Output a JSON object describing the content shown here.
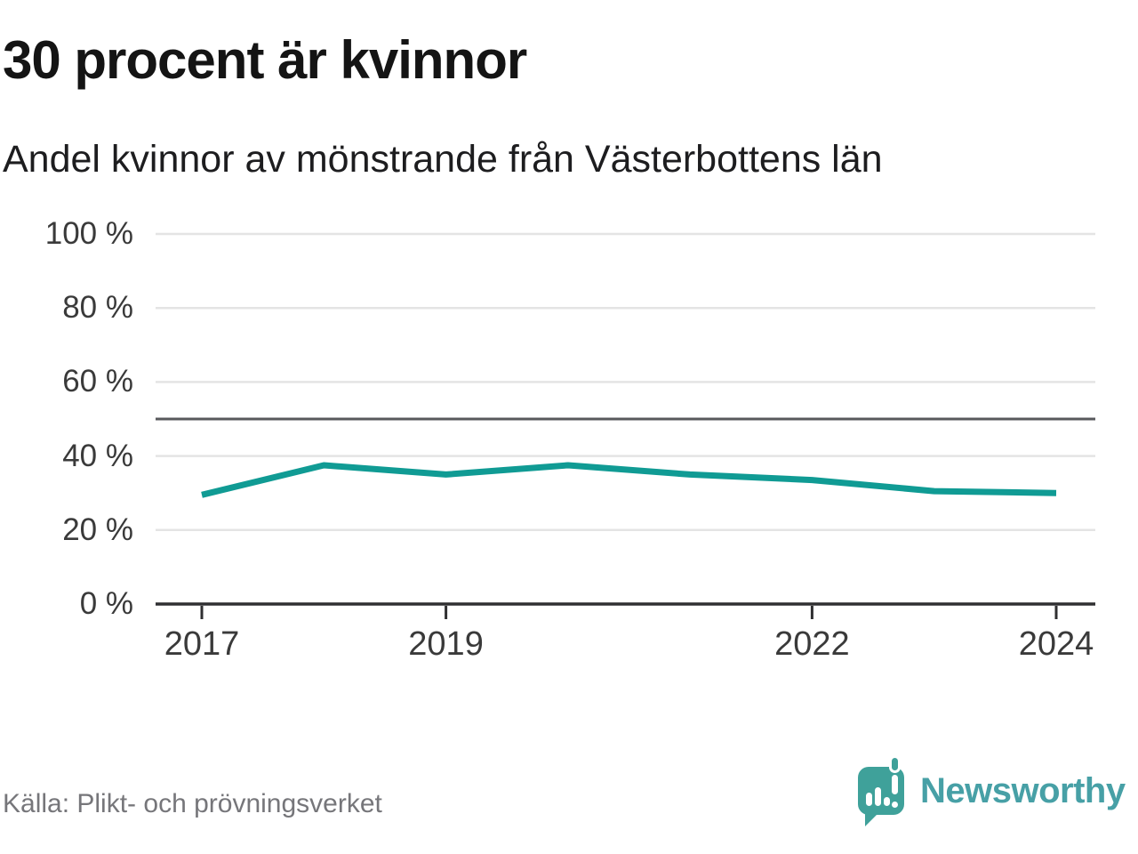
{
  "header": {
    "title": "30 procent är kvinnor",
    "subtitle": "Andel kvinnor av mönstrande från Västerbottens län"
  },
  "chart_data": {
    "type": "line",
    "title": "30 procent är kvinnor",
    "subtitle": "Andel kvinnor av mönstrande från Västerbottens län",
    "series_name": "Andel kvinnor av mönstrande",
    "unit": "%",
    "x": [
      2017,
      2018,
      2019,
      2020,
      2021,
      2022,
      2023,
      2024
    ],
    "values": [
      29.5,
      37.5,
      35,
      37.5,
      35,
      33.5,
      30.5,
      30
    ],
    "ylim": [
      0,
      100
    ],
    "y_ticks": [
      {
        "value": 100,
        "label": "100 %"
      },
      {
        "value": 80,
        "label": "80 %"
      },
      {
        "value": 60,
        "label": "60 %"
      },
      {
        "value": 40,
        "label": "40 %"
      },
      {
        "value": 20,
        "label": "20 %"
      },
      {
        "value": 0,
        "label": "0 %"
      }
    ],
    "x_tick_labels": [
      {
        "year": 2017,
        "label": "2017"
      },
      {
        "year": 2019,
        "label": "2019"
      },
      {
        "year": 2022,
        "label": "2022"
      },
      {
        "year": 2024,
        "label": "2024"
      }
    ],
    "reference_line": {
      "value": 50
    },
    "grid": true,
    "legend": false
  },
  "colors": {
    "line": "#109b94",
    "grid": "#e4e4e4",
    "reference": "#58595c",
    "axis": "#2f2f31",
    "axis_text": "#3a3a3a",
    "title_text": "#141414",
    "source_text": "#76767a",
    "brand_teal": "#3fa19a",
    "brand_text": "#47a0a6"
  },
  "footer": {
    "source": "Källa: Plikt- och prövningsverket",
    "brand": "Newsworthy"
  }
}
